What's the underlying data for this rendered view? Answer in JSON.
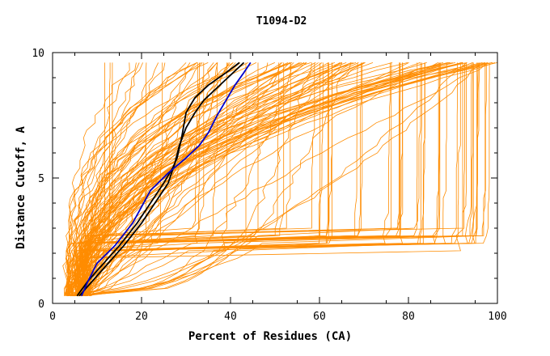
{
  "chart_data": {
    "type": "line",
    "title": "T1094-D2",
    "xlabel": "Percent of Residues (CA)",
    "ylabel": "Distance Cutoff, A",
    "xlim": [
      0,
      100
    ],
    "ylim": [
      0,
      10
    ],
    "x_ticks": [
      "0",
      "20",
      "40",
      "60",
      "80",
      "100"
    ],
    "y_ticks": [
      "0",
      "5",
      "10"
    ],
    "grid": false,
    "legend": "none",
    "colors": {
      "background_models": "#ff8c00",
      "highlight_black": "#000000",
      "highlight_blue": "#0000cc"
    },
    "highlighted_series": [
      {
        "color": "black",
        "x": [
          5.5,
          8,
          11,
          15,
          19,
          22,
          25,
          27,
          28,
          29,
          30,
          32,
          35,
          39,
          42
        ],
        "y": [
          0.3,
          0.9,
          1.5,
          2.3,
          3.2,
          4.0,
          4.8,
          5.4,
          5.8,
          6.6,
          7.6,
          8.2,
          8.7,
          9.2,
          9.6
        ]
      },
      {
        "color": "black",
        "x": [
          6,
          9,
          12,
          16,
          20,
          23,
          26,
          27.5,
          28.5,
          30,
          32,
          34,
          37,
          40,
          43
        ],
        "y": [
          0.3,
          0.9,
          1.5,
          2.3,
          3.2,
          4.0,
          4.8,
          5.6,
          6.3,
          7.0,
          7.6,
          8.1,
          8.6,
          9.1,
          9.6
        ]
      },
      {
        "color": "blue",
        "x": [
          6.5,
          8,
          10,
          14,
          18,
          22,
          26,
          30,
          33,
          35,
          37,
          39,
          41,
          43,
          44.5
        ],
        "y": [
          0.3,
          0.9,
          1.6,
          2.3,
          3.2,
          4.5,
          5.2,
          5.8,
          6.3,
          6.8,
          7.5,
          8.1,
          8.7,
          9.2,
          9.6
        ]
      }
    ],
    "background_series_count": 150
  }
}
